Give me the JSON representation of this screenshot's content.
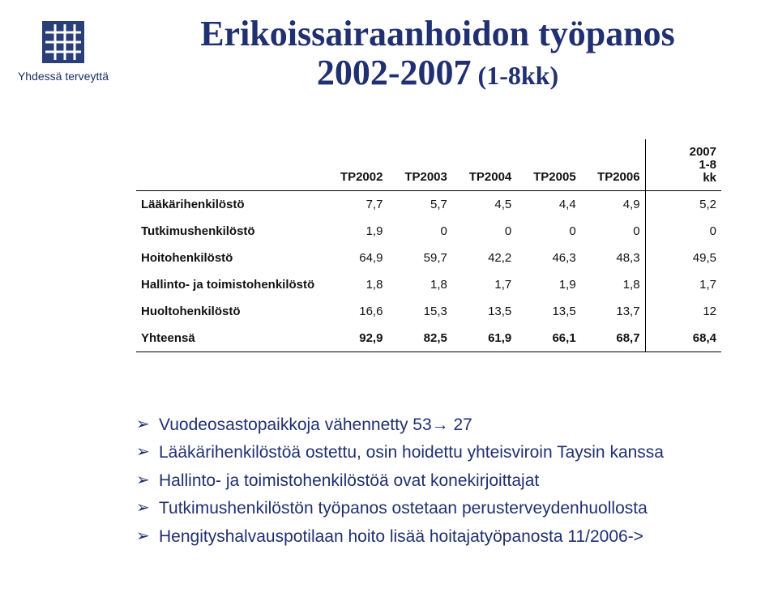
{
  "logo": {
    "tagline": "Yhdessä terveyttä"
  },
  "title": {
    "line1": "Erikoissairaanhoidon työpanos",
    "line2_pre": "2002-2007",
    "line2_sub": " (1-8kk)"
  },
  "table": {
    "columns": [
      "",
      "TP2002",
      "TP2003",
      "TP2004",
      "TP2005",
      "TP2006"
    ],
    "last_col_top": "2007",
    "last_col_mid": "1-8",
    "last_col_bot": "kk",
    "rows": [
      {
        "label": "Lääkärihenkilöstö",
        "c": [
          "7,7",
          "5,7",
          "4,5",
          "4,4",
          "4,9",
          "5,2"
        ]
      },
      {
        "label": "Tutkimushenkilöstö",
        "c": [
          "1,9",
          "0",
          "0",
          "0",
          "0",
          "0"
        ]
      },
      {
        "label": "Hoitohenkilöstö",
        "c": [
          "64,9",
          "59,7",
          "42,2",
          "46,3",
          "48,3",
          "49,5"
        ]
      },
      {
        "label": "Hallinto- ja toimistohenkilöstö",
        "c": [
          "1,8",
          "1,8",
          "1,7",
          "1,9",
          "1,8",
          "1,7"
        ]
      },
      {
        "label": "Huoltohenkilöstö",
        "c": [
          "16,6",
          "15,3",
          "13,5",
          "13,5",
          "13,7",
          "12"
        ]
      },
      {
        "label": "Yhteensä",
        "c": [
          "92,9",
          "82,5",
          "61,9",
          "66,1",
          "68,7",
          "68,4"
        ],
        "total": true
      }
    ]
  },
  "bullets": [
    "Vuodeosastopaikkoja vähennetty 53→ 27",
    "Lääkärihenkilöstöä ostettu, osin hoidettu yhteisviroin Taysin kanssa",
    "Hallinto- ja toimistohenkilöstöä ovat konekirjoittajat",
    "Tutkimushenkilöstön työpanos ostetaan perusterveydenhuollosta",
    "Hengityshalvauspotilaan hoito lisää hoitajatyöpanosta 11/2006->"
  ],
  "colors": {
    "brand": "#1a2e60",
    "title": "#203070",
    "text_dark": "#111111"
  }
}
